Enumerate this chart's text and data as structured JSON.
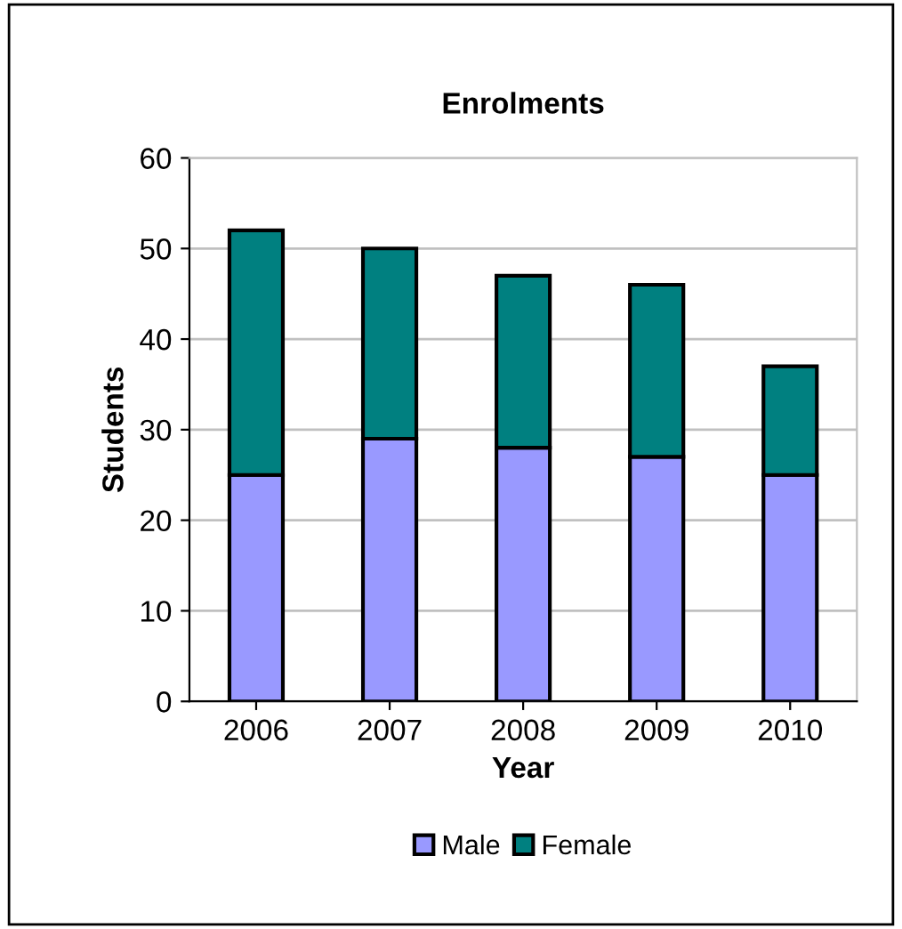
{
  "chart_data": {
    "type": "bar",
    "stacked": true,
    "title": "Enrolments",
    "xlabel": "Year",
    "ylabel": "Students",
    "categories": [
      "2006",
      "2007",
      "2008",
      "2009",
      "2010"
    ],
    "series": [
      {
        "name": "Male",
        "color": "#9999ff",
        "values": [
          25,
          29,
          28,
          27,
          25
        ]
      },
      {
        "name": "Female",
        "color": "#008080",
        "values": [
          27,
          21,
          19,
          19,
          12
        ]
      }
    ],
    "ylim": [
      0,
      60
    ],
    "yticks": [
      0,
      10,
      20,
      30,
      40,
      50,
      60
    ],
    "grid": "y",
    "legend": "bottom"
  }
}
